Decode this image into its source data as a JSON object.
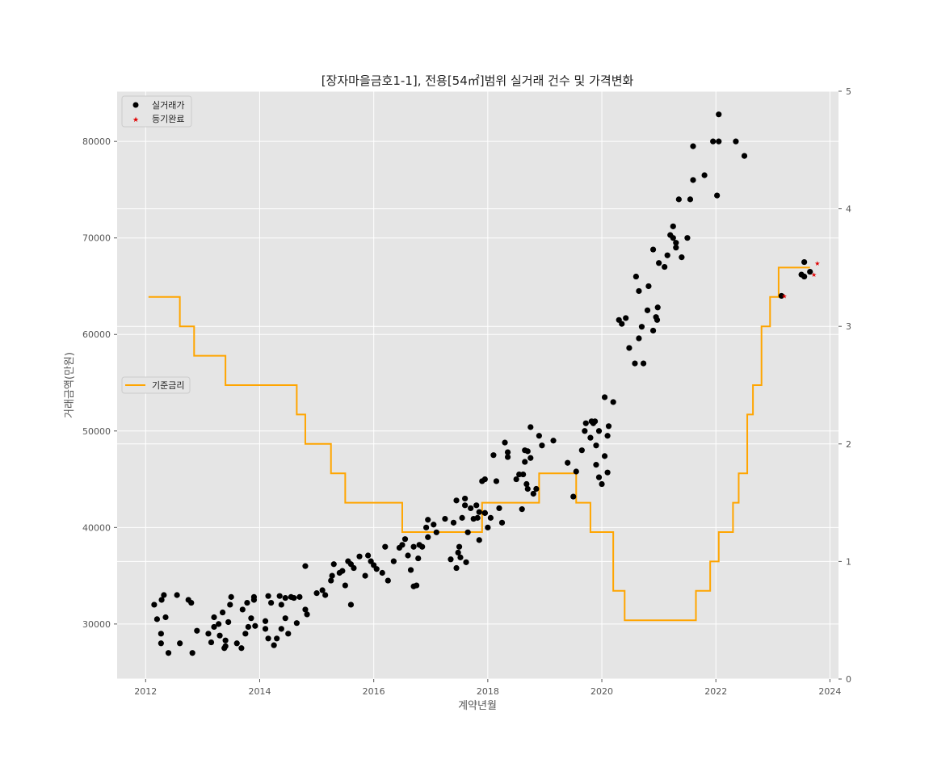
{
  "chart_data": {
    "type": "scatter",
    "title": "[장자마을금호1-1], 전용[54㎡]범위 실거래 건수 및 가격변화",
    "xlabel": "계약년월",
    "ylabel": "거래금액(만원)",
    "xlim": [
      2011.5,
      2024.15
    ],
    "ylim": [
      24300,
      85200
    ],
    "y2lim": [
      0,
      5
    ],
    "x_ticks": [
      2012,
      2014,
      2016,
      2018,
      2020,
      2022,
      2024
    ],
    "y_ticks": [
      30000,
      40000,
      50000,
      60000,
      70000,
      80000
    ],
    "y2_ticks": [
      0,
      1,
      2,
      3,
      4,
      5
    ],
    "grid": true,
    "legend_top": {
      "placement": "top-left",
      "entries": [
        "실거래가",
        "등기완료"
      ]
    },
    "legend_rate": {
      "placement": "center-left",
      "entries": [
        "기준금리"
      ]
    },
    "colors": {
      "background": "#e5e5e5",
      "grid": "#ffffff",
      "trade": "#000000",
      "registered": "#e00000",
      "rate": "#ffa500"
    },
    "series": [
      {
        "name": "실거래가",
        "kind": "scatter",
        "points": [
          [
            2012.15,
            32000
          ],
          [
            2012.2,
            30500
          ],
          [
            2012.28,
            32500
          ],
          [
            2012.32,
            33000
          ],
          [
            2012.27,
            29000
          ],
          [
            2012.27,
            28000
          ],
          [
            2012.35,
            30700
          ],
          [
            2012.4,
            27000
          ],
          [
            2012.55,
            33000
          ],
          [
            2012.6,
            28000
          ],
          [
            2012.75,
            32500
          ],
          [
            2012.8,
            32200
          ],
          [
            2012.82,
            27000
          ],
          [
            2012.9,
            29300
          ],
          [
            2013.1,
            29000
          ],
          [
            2013.15,
            28100
          ],
          [
            2013.2,
            29700
          ],
          [
            2013.2,
            30700
          ],
          [
            2013.28,
            30000
          ],
          [
            2013.3,
            28800
          ],
          [
            2013.35,
            31200
          ],
          [
            2013.38,
            27500
          ],
          [
            2013.4,
            28300
          ],
          [
            2013.4,
            27700
          ],
          [
            2013.45,
            30200
          ],
          [
            2013.48,
            32000
          ],
          [
            2013.5,
            32800
          ],
          [
            2013.6,
            28000
          ],
          [
            2013.68,
            27500
          ],
          [
            2013.7,
            31500
          ],
          [
            2013.75,
            29000
          ],
          [
            2013.8,
            29700
          ],
          [
            2013.78,
            32200
          ],
          [
            2013.85,
            30600
          ],
          [
            2013.9,
            32800
          ],
          [
            2013.9,
            32500
          ],
          [
            2013.92,
            29800
          ],
          [
            2014.1,
            30300
          ],
          [
            2014.1,
            29500
          ],
          [
            2014.15,
            28500
          ],
          [
            2014.15,
            32900
          ],
          [
            2014.2,
            32200
          ],
          [
            2014.25,
            27800
          ],
          [
            2014.3,
            28500
          ],
          [
            2014.35,
            32900
          ],
          [
            2014.38,
            32000
          ],
          [
            2014.38,
            29500
          ],
          [
            2014.45,
            30600
          ],
          [
            2014.45,
            32700
          ],
          [
            2014.5,
            29000
          ],
          [
            2014.55,
            32800
          ],
          [
            2014.6,
            32700
          ],
          [
            2014.65,
            30100
          ],
          [
            2014.7,
            32800
          ],
          [
            2014.8,
            31500
          ],
          [
            2014.83,
            31000
          ],
          [
            2014.8,
            36000
          ],
          [
            2015.0,
            33200
          ],
          [
            2015.1,
            33500
          ],
          [
            2015.15,
            33000
          ],
          [
            2015.25,
            34500
          ],
          [
            2015.27,
            35000
          ],
          [
            2015.3,
            36200
          ],
          [
            2015.4,
            35300
          ],
          [
            2015.45,
            35500
          ],
          [
            2015.5,
            34000
          ],
          [
            2015.55,
            36500
          ],
          [
            2015.6,
            36200
          ],
          [
            2015.6,
            32000
          ],
          [
            2015.65,
            35800
          ],
          [
            2015.75,
            37000
          ],
          [
            2015.85,
            35000
          ],
          [
            2015.9,
            37100
          ],
          [
            2015.95,
            36500
          ],
          [
            2016.0,
            36100
          ],
          [
            2016.05,
            35700
          ],
          [
            2016.15,
            35300
          ],
          [
            2016.2,
            38000
          ],
          [
            2016.25,
            34500
          ],
          [
            2016.35,
            36500
          ],
          [
            2016.45,
            37900
          ],
          [
            2016.5,
            38200
          ],
          [
            2016.55,
            38800
          ],
          [
            2016.6,
            37100
          ],
          [
            2016.65,
            35600
          ],
          [
            2016.7,
            38000
          ],
          [
            2016.7,
            33900
          ],
          [
            2016.75,
            34000
          ],
          [
            2016.78,
            36800
          ],
          [
            2016.8,
            38200
          ],
          [
            2016.85,
            38000
          ],
          [
            2016.92,
            40000
          ],
          [
            2016.95,
            40800
          ],
          [
            2016.95,
            39000
          ],
          [
            2017.05,
            40300
          ],
          [
            2017.1,
            39500
          ],
          [
            2017.25,
            40900
          ],
          [
            2017.35,
            36700
          ],
          [
            2017.4,
            40500
          ],
          [
            2017.45,
            42800
          ],
          [
            2017.45,
            35800
          ],
          [
            2017.48,
            37400
          ],
          [
            2017.5,
            38000
          ],
          [
            2017.52,
            36900
          ],
          [
            2017.55,
            41000
          ],
          [
            2017.6,
            43000
          ],
          [
            2017.6,
            42300
          ],
          [
            2017.62,
            36400
          ],
          [
            2017.65,
            39500
          ],
          [
            2017.7,
            42000
          ],
          [
            2017.75,
            40900
          ],
          [
            2017.8,
            42300
          ],
          [
            2017.82,
            41000
          ],
          [
            2017.85,
            38700
          ],
          [
            2017.85,
            41600
          ],
          [
            2017.9,
            44800
          ],
          [
            2017.95,
            45000
          ],
          [
            2017.95,
            41500
          ],
          [
            2017.95,
            41500
          ],
          [
            2018.0,
            40000
          ],
          [
            2018.05,
            41000
          ],
          [
            2018.1,
            47500
          ],
          [
            2018.15,
            44800
          ],
          [
            2018.2,
            42000
          ],
          [
            2018.25,
            40500
          ],
          [
            2018.3,
            48800
          ],
          [
            2018.35,
            47800
          ],
          [
            2018.35,
            47300
          ],
          [
            2018.5,
            45000
          ],
          [
            2018.55,
            45500
          ],
          [
            2018.6,
            41900
          ],
          [
            2018.62,
            45500
          ],
          [
            2018.65,
            48000
          ],
          [
            2018.65,
            46800
          ],
          [
            2018.68,
            44500
          ],
          [
            2018.7,
            47900
          ],
          [
            2018.7,
            44000
          ],
          [
            2018.75,
            47200
          ],
          [
            2018.75,
            50400
          ],
          [
            2018.8,
            43500
          ],
          [
            2018.85,
            44000
          ],
          [
            2018.9,
            49500
          ],
          [
            2018.95,
            48500
          ],
          [
            2019.15,
            49000
          ],
          [
            2019.4,
            46700
          ],
          [
            2019.5,
            43200
          ],
          [
            2019.55,
            45800
          ],
          [
            2019.65,
            48000
          ],
          [
            2019.7,
            50000
          ],
          [
            2019.72,
            50800
          ],
          [
            2019.8,
            49300
          ],
          [
            2019.82,
            51000
          ],
          [
            2019.85,
            50800
          ],
          [
            2019.88,
            51000
          ],
          [
            2019.9,
            48500
          ],
          [
            2019.9,
            46500
          ],
          [
            2019.95,
            50000
          ],
          [
            2019.95,
            45200
          ],
          [
            2020.0,
            44500
          ],
          [
            2020.05,
            47400
          ],
          [
            2020.05,
            53500
          ],
          [
            2020.1,
            49500
          ],
          [
            2020.1,
            45700
          ],
          [
            2020.12,
            50500
          ],
          [
            2020.2,
            53000
          ],
          [
            2020.3,
            61500
          ],
          [
            2020.35,
            61100
          ],
          [
            2020.42,
            61700
          ],
          [
            2020.48,
            58600
          ],
          [
            2020.58,
            57000
          ],
          [
            2020.6,
            66000
          ],
          [
            2020.65,
            64500
          ],
          [
            2020.65,
            59600
          ],
          [
            2020.7,
            60800
          ],
          [
            2020.73,
            57000
          ],
          [
            2020.8,
            62500
          ],
          [
            2020.82,
            65000
          ],
          [
            2020.9,
            68800
          ],
          [
            2020.9,
            60400
          ],
          [
            2020.95,
            61800
          ],
          [
            2020.97,
            61500
          ],
          [
            2020.98,
            62800
          ],
          [
            2021.0,
            67400
          ],
          [
            2021.1,
            67000
          ],
          [
            2021.15,
            68200
          ],
          [
            2021.2,
            70300
          ],
          [
            2021.25,
            71200
          ],
          [
            2021.25,
            70000
          ],
          [
            2021.3,
            69000
          ],
          [
            2021.3,
            69500
          ],
          [
            2021.35,
            74000
          ],
          [
            2021.4,
            68000
          ],
          [
            2021.5,
            70000
          ],
          [
            2021.55,
            74000
          ],
          [
            2021.6,
            79500
          ],
          [
            2021.6,
            76000
          ],
          [
            2021.8,
            76500
          ],
          [
            2021.95,
            80000
          ],
          [
            2022.05,
            82800
          ],
          [
            2022.05,
            80000
          ],
          [
            2022.02,
            74400
          ],
          [
            2022.35,
            80000
          ],
          [
            2022.5,
            78500
          ],
          [
            2023.15,
            64000
          ],
          [
            2023.5,
            66200
          ],
          [
            2023.55,
            66000
          ],
          [
            2023.55,
            67500
          ],
          [
            2023.65,
            66500
          ]
        ]
      },
      {
        "name": "등기완료",
        "kind": "scatter",
        "points": [
          [
            2023.2,
            64000
          ],
          [
            2023.72,
            66200
          ],
          [
            2023.78,
            67400
          ]
        ]
      },
      {
        "name": "기준금리",
        "kind": "step",
        "axis": "right",
        "points": [
          [
            2012.05,
            3.25
          ],
          [
            2012.6,
            3.0
          ],
          [
            2012.85,
            2.75
          ],
          [
            2013.4,
            2.5
          ],
          [
            2014.65,
            2.25
          ],
          [
            2014.8,
            2.0
          ],
          [
            2015.25,
            1.75
          ],
          [
            2015.5,
            1.5
          ],
          [
            2016.5,
            1.25
          ],
          [
            2017.9,
            1.5
          ],
          [
            2018.9,
            1.75
          ],
          [
            2019.55,
            1.5
          ],
          [
            2019.8,
            1.25
          ],
          [
            2020.2,
            0.75
          ],
          [
            2020.4,
            0.5
          ],
          [
            2021.65,
            0.75
          ],
          [
            2021.9,
            1.0
          ],
          [
            2022.05,
            1.25
          ],
          [
            2022.3,
            1.5
          ],
          [
            2022.4,
            1.75
          ],
          [
            2022.55,
            2.25
          ],
          [
            2022.65,
            2.5
          ],
          [
            2022.8,
            3.0
          ],
          [
            2022.95,
            3.25
          ],
          [
            2023.1,
            3.5
          ],
          [
            2023.65,
            3.5
          ]
        ]
      }
    ]
  }
}
